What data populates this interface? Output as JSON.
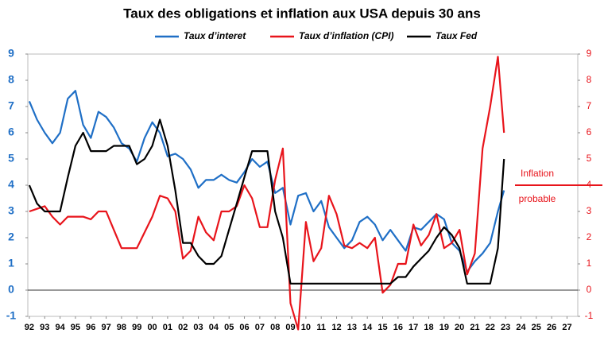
{
  "chart_data": {
    "type": "line",
    "title": "Taux des obligations et inflation aux USA depuis 30 ans",
    "x": [
      1992,
      1992.5,
      1993,
      1993.5,
      1994,
      1994.5,
      1995,
      1995.5,
      1996,
      1996.5,
      1997,
      1997.5,
      1998,
      1998.5,
      1999,
      1999.5,
      2000,
      2000.5,
      2001,
      2001.5,
      2002,
      2002.5,
      2003,
      2003.5,
      2004,
      2004.5,
      2005,
      2005.5,
      2006,
      2006.5,
      2007,
      2007.5,
      2008,
      2008.5,
      2009,
      2009.5,
      2010,
      2010.5,
      2011,
      2011.5,
      2012,
      2012.5,
      2013,
      2013.5,
      2014,
      2014.5,
      2015,
      2015.5,
      2016,
      2016.5,
      2017,
      2017.5,
      2018,
      2018.5,
      2019,
      2019.5,
      2020,
      2020.5,
      2021,
      2021.5,
      2022,
      2022.5,
      2022.9
    ],
    "series": [
      {
        "name": "Taux d’interet",
        "color": "#1f6fc6",
        "axis": "y",
        "values": [
          7.2,
          6.5,
          6.0,
          5.6,
          6.0,
          7.3,
          7.6,
          6.3,
          5.8,
          6.8,
          6.6,
          6.2,
          5.6,
          5.4,
          4.9,
          5.8,
          6.4,
          6.0,
          5.1,
          5.2,
          5.0,
          4.6,
          3.9,
          4.2,
          4.2,
          4.4,
          4.2,
          4.1,
          4.5,
          5.0,
          4.7,
          4.9,
          3.7,
          3.9,
          2.5,
          3.6,
          3.7,
          3.0,
          3.4,
          2.4,
          2.0,
          1.6,
          1.9,
          2.6,
          2.8,
          2.5,
          1.9,
          2.3,
          1.9,
          1.5,
          2.4,
          2.3,
          2.6,
          2.9,
          2.7,
          1.8,
          1.5,
          0.7,
          1.1,
          1.4,
          1.8,
          3.0,
          3.8
        ]
      },
      {
        "name": "Taux d’inflation (CPI)",
        "color": "#e8141b",
        "axis": "y2",
        "values": [
          3.0,
          3.1,
          3.2,
          2.8,
          2.5,
          2.8,
          2.8,
          2.8,
          2.7,
          3.0,
          3.0,
          2.3,
          1.6,
          1.6,
          1.6,
          2.2,
          2.8,
          3.6,
          3.5,
          3.0,
          1.2,
          1.5,
          2.8,
          2.2,
          1.9,
          3.0,
          3.0,
          3.2,
          4.0,
          3.5,
          2.4,
          2.4,
          4.2,
          5.4,
          -0.5,
          -1.5,
          2.6,
          1.1,
          1.6,
          3.6,
          2.9,
          1.7,
          1.6,
          1.8,
          1.6,
          2.0,
          -0.1,
          0.2,
          1.0,
          1.0,
          2.5,
          1.7,
          2.1,
          2.9,
          1.6,
          1.8,
          2.3,
          0.6,
          1.4,
          5.4,
          7.0,
          8.9,
          6.0
        ]
      },
      {
        "name": "Taux Fed",
        "color": "#000000",
        "axis": "y",
        "values": [
          4.0,
          3.3,
          3.0,
          3.0,
          3.0,
          4.3,
          5.5,
          6.0,
          5.3,
          5.3,
          5.3,
          5.5,
          5.5,
          5.5,
          4.8,
          5.0,
          5.5,
          6.5,
          5.5,
          3.8,
          1.8,
          1.8,
          1.3,
          1.0,
          1.0,
          1.3,
          2.3,
          3.3,
          4.3,
          5.3,
          5.3,
          5.3,
          3.0,
          2.0,
          0.25,
          0.25,
          0.25,
          0.25,
          0.25,
          0.25,
          0.25,
          0.25,
          0.25,
          0.25,
          0.25,
          0.25,
          0.25,
          0.25,
          0.5,
          0.5,
          0.9,
          1.2,
          1.5,
          2.0,
          2.4,
          2.1,
          1.6,
          0.25,
          0.25,
          0.25,
          0.25,
          1.6,
          5.0
        ]
      }
    ],
    "xlim": [
      1991.9,
      2027.7
    ],
    "xticks": [
      {
        "value": 1992,
        "label": "92"
      },
      {
        "value": 1993,
        "label": "93"
      },
      {
        "value": 1994,
        "label": "94"
      },
      {
        "value": 1995,
        "label": "95"
      },
      {
        "value": 1996,
        "label": "96"
      },
      {
        "value": 1997,
        "label": "97"
      },
      {
        "value": 1998,
        "label": "98"
      },
      {
        "value": 1999,
        "label": "99"
      },
      {
        "value": 2000,
        "label": "00"
      },
      {
        "value": 2001,
        "label": "01"
      },
      {
        "value": 2002,
        "label": "02"
      },
      {
        "value": 2003,
        "label": "03"
      },
      {
        "value": 2004,
        "label": "04"
      },
      {
        "value": 2005,
        "label": "05"
      },
      {
        "value": 2006,
        "label": "06"
      },
      {
        "value": 2007,
        "label": "07"
      },
      {
        "value": 2008,
        "label": "08"
      },
      {
        "value": 2009,
        "label": "09"
      },
      {
        "value": 2010,
        "label": "10"
      },
      {
        "value": 2011,
        "label": "11"
      },
      {
        "value": 2012,
        "label": "12"
      },
      {
        "value": 2013,
        "label": "13"
      },
      {
        "value": 2014,
        "label": "14"
      },
      {
        "value": 2015,
        "label": "15"
      },
      {
        "value": 2016,
        "label": "16"
      },
      {
        "value": 2017,
        "label": "17"
      },
      {
        "value": 2018,
        "label": "18"
      },
      {
        "value": 2019,
        "label": "19"
      },
      {
        "value": 2020,
        "label": "20"
      },
      {
        "value": 2021,
        "label": "21"
      },
      {
        "value": 2022,
        "label": "22"
      },
      {
        "value": 2023,
        "label": "23"
      },
      {
        "value": 2024,
        "label": "24"
      },
      {
        "value": 2025,
        "label": "25"
      },
      {
        "value": 2026,
        "label": "26"
      },
      {
        "value": 2027,
        "label": "27"
      }
    ],
    "ylim": [
      -1,
      9
    ],
    "yticks": [
      -1,
      0,
      1,
      2,
      3,
      4,
      5,
      6,
      7,
      8,
      9
    ],
    "y2lim": [
      -1,
      9
    ],
    "y2ticks": [
      -1,
      0,
      1,
      2,
      3,
      4,
      5,
      6,
      7,
      8,
      9
    ],
    "annotation": {
      "lines": [
        "Inflation",
        "probable"
      ],
      "value": 4,
      "axis": "y2"
    }
  }
}
